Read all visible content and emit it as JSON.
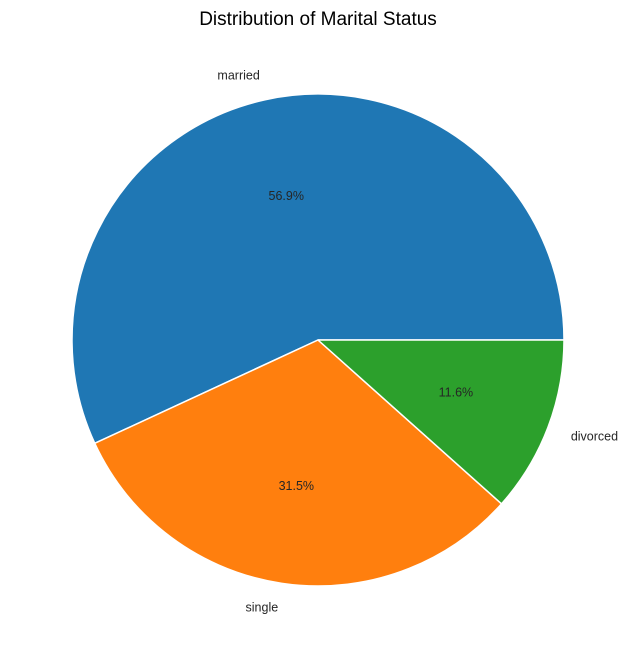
{
  "chart_data": {
    "type": "pie",
    "title": "Distribution of Marital Status",
    "categories": [
      "married",
      "single",
      "divorced"
    ],
    "values": [
      56.9,
      31.5,
      11.6
    ],
    "percent_labels": [
      "56.9%",
      "31.5%",
      "11.6%"
    ],
    "colors": [
      "#1f77b4",
      "#ff7f0e",
      "#2ca02c"
    ],
    "start_angle_deg": 0,
    "direction": "counterclockwise",
    "wedge_edge_color": "#ffffff"
  }
}
